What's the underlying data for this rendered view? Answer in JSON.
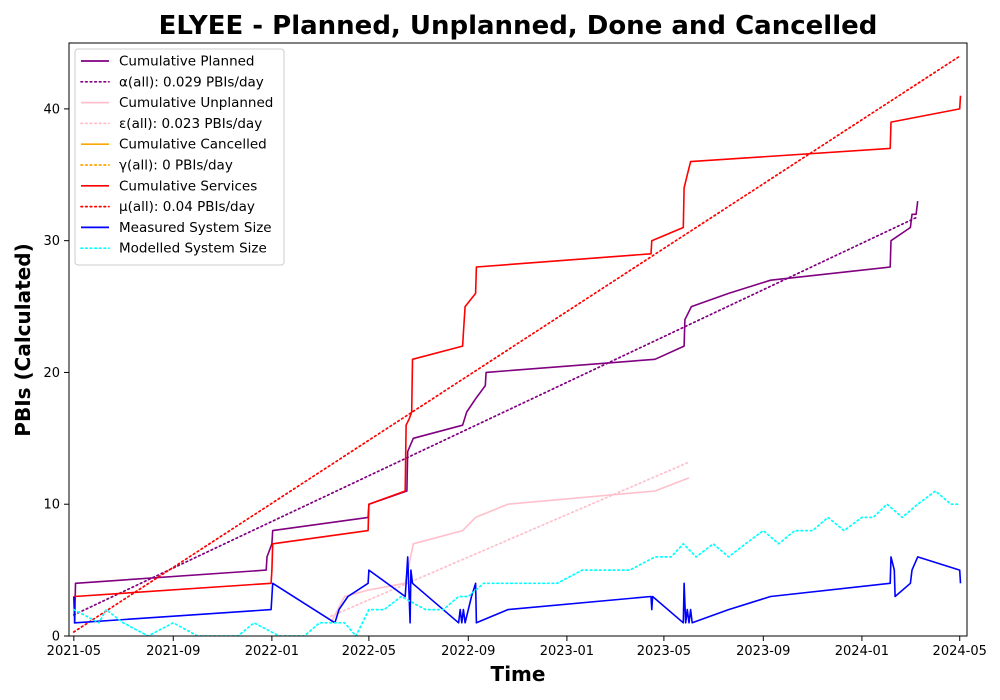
{
  "chart_data": {
    "type": "line",
    "title": "ELYEE - Planned, Unplanned, Done  and Cancelled",
    "xlabel": "Time",
    "ylabel": "PBIs (Calculated)",
    "x_ticks": [
      "2021-05",
      "2021-09",
      "2022-01",
      "2022-05",
      "2022-09",
      "2023-01",
      "2023-05",
      "2023-09",
      "2024-01",
      "2024-05"
    ],
    "y_ticks": [
      "0",
      "10",
      "20",
      "30",
      "40"
    ],
    "xlim": [
      "2021-04-25",
      "2024-05-10"
    ],
    "ylim": [
      0,
      45
    ],
    "grid": false,
    "legend_position": "top-left",
    "series": [
      {
        "name": "Cumulative Planned",
        "color": "#800080",
        "style": "solid",
        "x": [
          "2021-05-01",
          "2021-05-02",
          "2021-05-03",
          "2021-12-25",
          "2021-12-26",
          "2022-01-01",
          "2022-01-02",
          "2022-04-30",
          "2022-05-01",
          "2022-06-17",
          "2022-06-18",
          "2022-06-25",
          "2022-08-25",
          "2022-08-30",
          "2022-09-10",
          "2022-09-22",
          "2022-09-23",
          "2023-04-20",
          "2023-05-26",
          "2023-05-27",
          "2023-06-04",
          "2023-07-20",
          "2023-09-10",
          "2024-02-05",
          "2024-02-06",
          "2024-03-01",
          "2024-03-03",
          "2024-03-08",
          "2024-03-10"
        ],
        "y": [
          1,
          1,
          4,
          5,
          6,
          7,
          8,
          9,
          10,
          11,
          14,
          15,
          16,
          17,
          18,
          19,
          20,
          21,
          22,
          24,
          25,
          26,
          27,
          28,
          30,
          31,
          32,
          32,
          33
        ]
      },
      {
        "name": "α(all): 0.029 PBIs/day",
        "color": "#800080",
        "style": "dotted",
        "x": [
          "2021-05-01",
          "2024-03-10"
        ],
        "y": [
          1.6,
          31.8
        ]
      },
      {
        "name": "Cumulative Unplanned",
        "color": "#ffc0cb",
        "style": "solid",
        "x": [
          "2022-03-15",
          "2022-04-01",
          "2022-05-01",
          "2022-06-15",
          "2022-06-25",
          "2022-08-25",
          "2022-09-10",
          "2022-10-20",
          "2023-04-20",
          "2023-06-01"
        ],
        "y": [
          1,
          3,
          3.5,
          4,
          7,
          8,
          9,
          10,
          11,
          12
        ]
      },
      {
        "name": "ε(all): 0.023 PBIs/day",
        "color": "#ffc0cb",
        "style": "dotted",
        "x": [
          "2022-03-15",
          "2023-06-01"
        ],
        "y": [
          1.5,
          13.2
        ]
      },
      {
        "name": "Cumulative Cancelled",
        "color": "#ffa500",
        "style": "solid",
        "x": [],
        "y": []
      },
      {
        "name": "γ(all): 0 PBIs/day",
        "color": "#ffa500",
        "style": "dotted",
        "x": [],
        "y": []
      },
      {
        "name": "Cumulative Services",
        "color": "#ff0000",
        "style": "solid",
        "x": [
          "2021-05-01",
          "2021-05-02",
          "2021-12-31",
          "2022-01-01",
          "2022-01-02",
          "2022-04-30",
          "2022-05-01",
          "2022-06-15",
          "2022-06-16",
          "2022-06-20",
          "2022-06-23",
          "2022-06-24",
          "2022-08-25",
          "2022-08-26",
          "2022-08-28",
          "2022-09-10",
          "2022-09-11",
          "2023-04-15",
          "2023-04-16",
          "2023-05-25",
          "2023-05-26",
          "2023-05-30",
          "2023-06-03",
          "2024-02-05",
          "2024-02-06",
          "2024-05-01",
          "2024-05-02"
        ],
        "y": [
          3,
          3,
          4,
          5,
          7,
          8,
          10,
          11,
          16,
          16.5,
          17,
          21,
          22,
          23,
          25,
          26,
          28,
          29,
          30,
          31,
          34,
          35,
          36,
          37,
          39,
          40,
          41
        ]
      },
      {
        "name": "μ(all): 0.04 PBIs/day",
        "color": "#ff0000",
        "style": "dotted",
        "x": [
          "2021-05-01",
          "2024-05-01"
        ],
        "y": [
          0.3,
          44
        ]
      },
      {
        "name": "Measured System Size",
        "color": "#0000ff",
        "style": "solid",
        "x": [
          "2021-05-01",
          "2021-05-02",
          "2021-05-03",
          "2021-12-31",
          "2022-01-01",
          "2022-01-02",
          "2022-03-20",
          "2022-03-25",
          "2022-04-05",
          "2022-04-30",
          "2022-05-01",
          "2022-06-15",
          "2022-06-16",
          "2022-06-18",
          "2022-06-21",
          "2022-06-22",
          "2022-06-24",
          "2022-08-20",
          "2022-08-22",
          "2022-08-24",
          "2022-08-26",
          "2022-08-28",
          "2022-09-05",
          "2022-09-10",
          "2022-09-11",
          "2022-10-20",
          "2023-04-15",
          "2023-04-16",
          "2023-04-17",
          "2023-05-25",
          "2023-05-26",
          "2023-05-28",
          "2023-05-30",
          "2023-06-01",
          "2023-06-03",
          "2023-06-05",
          "2023-07-20",
          "2023-09-10",
          "2024-02-05",
          "2024-02-06",
          "2024-02-10",
          "2024-02-11",
          "2024-03-01",
          "2024-03-03",
          "2024-03-10",
          "2024-05-01",
          "2024-05-02"
        ],
        "y": [
          3,
          1,
          1,
          2,
          3,
          4,
          1,
          2,
          3,
          4,
          5,
          3,
          4,
          6,
          1,
          5,
          4,
          1,
          2,
          1,
          2,
          1,
          3,
          4,
          1,
          2,
          3,
          2,
          3,
          1,
          4,
          1,
          2,
          1,
          2,
          1,
          2,
          3,
          4,
          6,
          5,
          3,
          4,
          5,
          6,
          5,
          4
        ]
      },
      {
        "name": "Modelled System Size",
        "color": "#00ffff",
        "style": "dotted",
        "x": [
          "2021-05-01",
          "2021-06-01",
          "2021-06-10",
          "2021-07-01",
          "2021-08-01",
          "2021-09-01",
          "2021-10-01",
          "2021-11-20",
          "2021-12-10",
          "2022-01-10",
          "2022-02-10",
          "2022-03-01",
          "2022-04-01",
          "2022-04-15",
          "2022-05-01",
          "2022-05-20",
          "2022-06-10",
          "2022-07-10",
          "2022-08-01",
          "2022-08-20",
          "2022-09-01",
          "2022-09-20",
          "2022-10-20",
          "2022-11-20",
          "2022-12-20",
          "2023-01-20",
          "2023-02-20",
          "2023-03-20",
          "2023-04-20",
          "2023-05-10",
          "2023-05-25",
          "2023-06-10",
          "2023-07-01",
          "2023-07-20",
          "2023-08-10",
          "2023-09-01",
          "2023-09-20",
          "2023-10-10",
          "2023-11-01",
          "2023-11-20",
          "2023-12-10",
          "2024-01-01",
          "2024-01-15",
          "2024-02-01",
          "2024-02-20",
          "2024-03-10",
          "2024-04-01",
          "2024-04-20",
          "2024-05-02"
        ],
        "y": [
          2,
          1,
          2,
          1,
          0,
          1,
          0,
          0,
          1,
          0,
          0,
          1,
          1,
          0,
          2,
          2,
          3,
          2,
          2,
          3,
          3,
          4,
          4,
          4,
          4,
          5,
          5,
          5,
          6,
          6,
          7,
          6,
          7,
          6,
          7,
          8,
          7,
          8,
          8,
          9,
          8,
          9,
          9,
          10,
          9,
          10,
          11,
          10,
          10
        ]
      }
    ]
  }
}
